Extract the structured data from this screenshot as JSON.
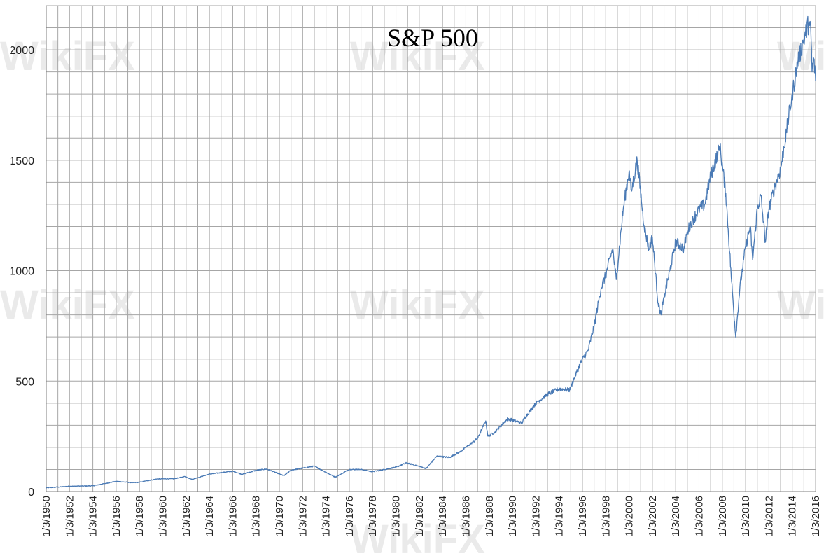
{
  "chart_data": {
    "type": "line",
    "title": "S&P 500",
    "xlabel": "",
    "ylabel": "",
    "ylim": [
      0,
      2200
    ],
    "yticks": [
      0,
      500,
      1000,
      1500,
      2000
    ],
    "x_tick_labels": [
      "1/3/1950",
      "1/3/1952",
      "1/3/1954",
      "1/3/1956",
      "1/3/1958",
      "1/3/1960",
      "1/3/1962",
      "1/3/1964",
      "1/3/1966",
      "1/3/1968",
      "1/3/1970",
      "1/3/1972",
      "1/3/1974",
      "1/3/1976",
      "1/3/1978",
      "1/3/1980",
      "1/3/1982",
      "1/3/1984",
      "1/3/1986",
      "1/3/1988",
      "1/3/1990",
      "1/3/1992",
      "1/3/1994",
      "1/3/1996",
      "1/3/1998",
      "1/3/2000",
      "1/3/2002",
      "1/3/2004",
      "1/3/2006",
      "1/3/2008",
      "1/3/2010",
      "1/3/2012",
      "1/3/2014",
      "1/3/2016"
    ],
    "xlim": [
      1950.0,
      2016.0
    ],
    "grid": true,
    "legend": "none",
    "series": [
      {
        "name": "S&P 500",
        "color": "#4a7ab5",
        "x": [
          1950.0,
          1952.0,
          1954.0,
          1955.0,
          1956.0,
          1957.5,
          1958.0,
          1959.5,
          1961.0,
          1961.9,
          1962.5,
          1964.0,
          1966.0,
          1966.8,
          1968.0,
          1968.9,
          1970.4,
          1971.0,
          1973.0,
          1974.8,
          1976.0,
          1977.0,
          1978.0,
          1980.0,
          1980.9,
          1982.6,
          1983.5,
          1984.6,
          1985.5,
          1987.0,
          1987.7,
          1987.9,
          1988.5,
          1989.6,
          1990.8,
          1991.0,
          1992.0,
          1993.0,
          1994.0,
          1994.9,
          1995.5,
          1996.0,
          1996.5,
          1997.0,
          1997.6,
          1998.0,
          1998.6,
          1998.9,
          1999.5,
          2000.0,
          2000.2,
          2000.7,
          2001.3,
          2001.7,
          2002.0,
          2002.5,
          2002.75,
          2003.0,
          2003.5,
          2004.0,
          2004.7,
          2005.0,
          2006.0,
          2006.5,
          2007.0,
          2007.8,
          2008.3,
          2008.8,
          2009.15,
          2009.5,
          2010.0,
          2010.4,
          2010.6,
          2011.0,
          2011.3,
          2011.7,
          2012.0,
          2012.5,
          2013.0,
          2013.5,
          2014.0,
          2014.5,
          2015.0,
          2015.4,
          2015.6,
          2015.7,
          2015.85,
          2016.0
        ],
        "values": [
          17,
          24,
          26,
          36,
          46,
          40,
          42,
          57,
          58,
          68,
          55,
          79,
          92,
          78,
          96,
          102,
          72,
          97,
          115,
          65,
          100,
          100,
          90,
          110,
          130,
          105,
          160,
          155,
          180,
          240,
          320,
          250,
          270,
          330,
          310,
          330,
          400,
          440,
          465,
          460,
          540,
          600,
          640,
          750,
          920,
          980,
          1100,
          960,
          1280,
          1450,
          1360,
          1500,
          1200,
          1100,
          1150,
          850,
          800,
          880,
          1000,
          1130,
          1100,
          1180,
          1280,
          1300,
          1430,
          1560,
          1350,
          950,
          700,
          920,
          1110,
          1200,
          1050,
          1280,
          1340,
          1130,
          1280,
          1380,
          1460,
          1630,
          1800,
          1950,
          2050,
          2120,
          2080,
          1900,
          1960,
          1860
        ]
      }
    ]
  },
  "watermark": {
    "text": "WikiFX",
    "color": "#d9d9d9"
  }
}
